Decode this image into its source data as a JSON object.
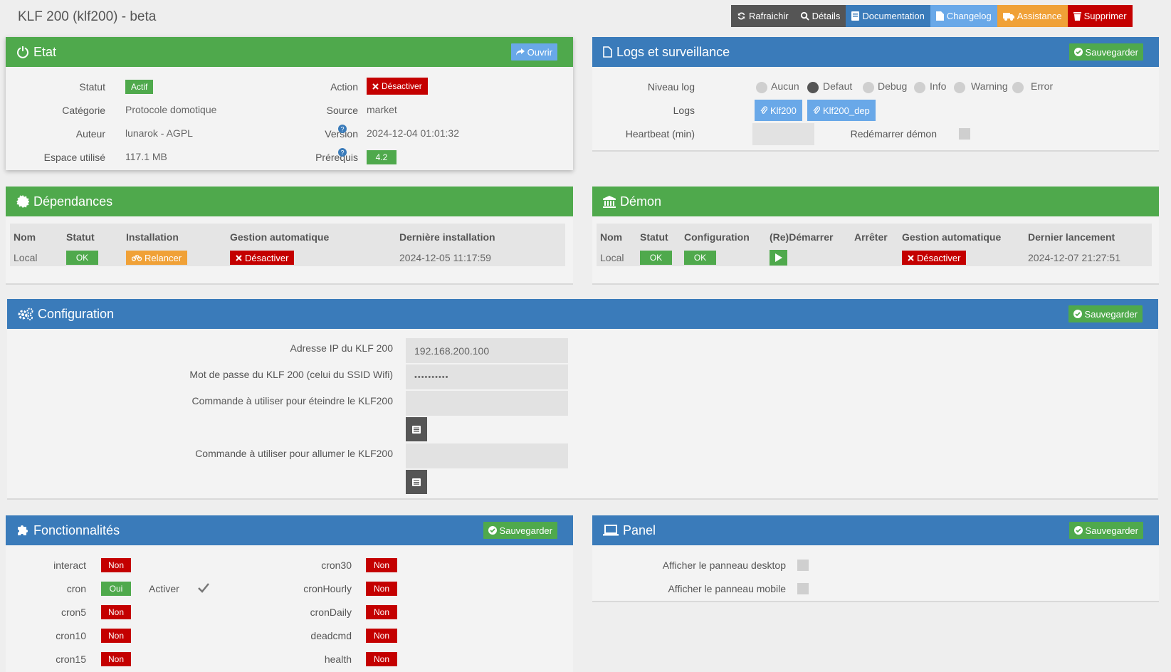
{
  "page": {
    "title": "KLF 200 (klf200) - beta"
  },
  "toolbar": {
    "refresh": "Rafraichir",
    "details": "Détails",
    "documentation": "Documentation",
    "changelog": "Changelog",
    "assistance": "Assistance",
    "delete": "Supprimer"
  },
  "etat": {
    "title": "Etat",
    "open_button": "Ouvrir",
    "statut_label": "Statut",
    "statut_value": "Actif",
    "categorie_label": "Catégorie",
    "categorie_value": "Protocole domotique",
    "auteur_label": "Auteur",
    "auteur_value": "lunarok - AGPL",
    "espace_label": "Espace utilisé",
    "espace_value": "117.1 MB",
    "action_label": "Action",
    "action_button": "Désactiver",
    "source_label": "Source",
    "source_value": "market",
    "version_label": "Version",
    "version_value": "2024-12-04 01:01:32",
    "prerequis_label": "Prérequis",
    "prerequis_value": "4.2"
  },
  "logs": {
    "title": "Logs et surveillance",
    "save_button": "Sauvegarder",
    "niveau_label": "Niveau log",
    "levels": [
      "Aucun",
      "Defaut",
      "Debug",
      "Info",
      "Warning",
      "Error"
    ],
    "selected_level": "Defaut",
    "logs_label": "Logs",
    "log_files": [
      "Klf200",
      "Klf200_dep"
    ],
    "heartbeat_label": "Heartbeat (min)",
    "heartbeat_value": "",
    "restart_label": "Redémarrer démon"
  },
  "dependances": {
    "title": "Dépendances",
    "headers": [
      "Nom",
      "Statut",
      "Installation",
      "Gestion automatique",
      "Dernière installation"
    ],
    "row": {
      "nom": "Local",
      "statut": "OK",
      "installation": "Relancer",
      "gestion": "Désactiver",
      "derniere": "2024-12-05 11:17:59"
    }
  },
  "demon": {
    "title": "Démon",
    "headers": [
      "Nom",
      "Statut",
      "Configuration",
      "(Re)Démarrer",
      "Arrêter",
      "Gestion automatique",
      "Dernier lancement"
    ],
    "row": {
      "nom": "Local",
      "statut": "OK",
      "configuration": "OK",
      "gestion": "Désactiver",
      "dernier": "2024-12-07 21:27:51"
    }
  },
  "configuration": {
    "title": "Configuration",
    "save_button": "Sauvegarder",
    "ip_label": "Adresse IP du KLF 200",
    "ip_value": "192.168.200.100",
    "password_label": "Mot de passe du KLF 200 (celui du SSID Wifi)",
    "password_value": "••••••••••",
    "cmd_off_label": "Commande à utiliser pour éteindre le KLF200",
    "cmd_off_value": "",
    "cmd_on_label": "Commande à utiliser pour allumer le KLF200",
    "cmd_on_value": ""
  },
  "fonctionnalites": {
    "title": "Fonctionnalités",
    "save_button": "Sauvegarder",
    "left": [
      {
        "name": "interact",
        "value": "Non"
      },
      {
        "name": "cron",
        "value": "Oui"
      },
      {
        "name": "cron5",
        "value": "Non"
      },
      {
        "name": "cron10",
        "value": "Non"
      },
      {
        "name": "cron15",
        "value": "Non"
      }
    ],
    "activer_label": "Activer",
    "right": [
      {
        "name": "cron30",
        "value": "Non"
      },
      {
        "name": "cronHourly",
        "value": "Non"
      },
      {
        "name": "cronDaily",
        "value": "Non"
      },
      {
        "name": "deadcmd",
        "value": "Non"
      },
      {
        "name": "health",
        "value": "Non"
      }
    ]
  },
  "panel": {
    "title": "Panel",
    "save_button": "Sauvegarder",
    "desktop_label": "Afficher le panneau desktop",
    "mobile_label": "Afficher le panneau mobile"
  },
  "colors": {
    "green": "#4fa94c",
    "blue": "#3a7bba",
    "red": "#c40000",
    "orange": "#f0a137",
    "light_blue": "#69a8e8",
    "dark": "#555555"
  }
}
